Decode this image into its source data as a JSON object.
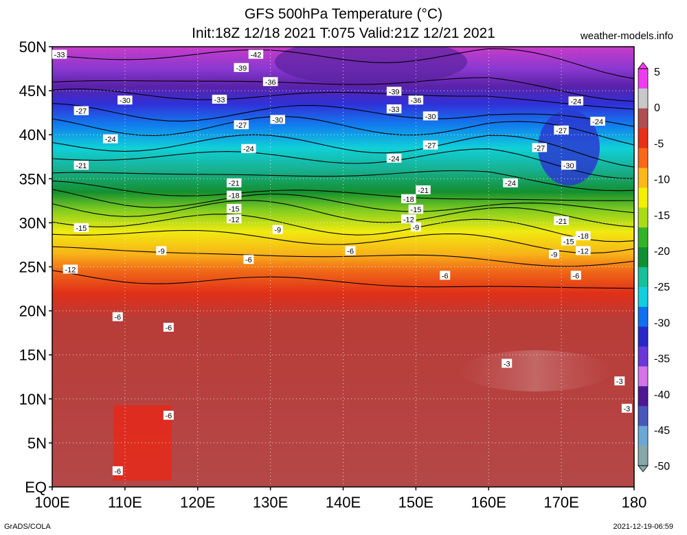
{
  "header": {
    "title": "GFS 500hPa Temperature (°C)",
    "subtitle": "Init:18Z 12/18 2021 T:075 Valid:21Z 12/21 2021",
    "site": "weather-models.info"
  },
  "footer": {
    "left": "GrADS/COLA",
    "right": "2021-12-19-06:59"
  },
  "map": {
    "lat_ticks": [
      "50N",
      "45N",
      "40N",
      "35N",
      "30N",
      "25N",
      "20N",
      "15N",
      "10N",
      "5N",
      "EQ"
    ],
    "lon_ticks": [
      "100E",
      "110E",
      "120E",
      "130E",
      "140E",
      "150E",
      "160E",
      "170E",
      "180"
    ],
    "lon_range": [
      100,
      180
    ],
    "lat_range": [
      0,
      50
    ],
    "contour_labels": [
      {
        "text": "-33",
        "lon": 101.0,
        "lat": 49.1
      },
      {
        "text": "-42",
        "lon": 128.0,
        "lat": 49.1
      },
      {
        "text": "-39",
        "lon": 126.0,
        "lat": 47.6
      },
      {
        "text": "-36",
        "lon": 130.0,
        "lat": 46.0
      },
      {
        "text": "-39",
        "lon": 147.0,
        "lat": 44.9
      },
      {
        "text": "-36",
        "lon": 150.0,
        "lat": 43.9
      },
      {
        "text": "-33",
        "lon": 147.0,
        "lat": 42.9
      },
      {
        "text": "-30",
        "lon": 152.0,
        "lat": 42.1
      },
      {
        "text": "-30",
        "lon": 110.0,
        "lat": 43.9
      },
      {
        "text": "-33",
        "lon": 123.0,
        "lat": 44.0
      },
      {
        "text": "-27",
        "lon": 104.0,
        "lat": 42.7
      },
      {
        "text": "-30",
        "lon": 131.0,
        "lat": 41.7
      },
      {
        "text": "-27",
        "lon": 126.0,
        "lat": 41.1
      },
      {
        "text": "-24",
        "lon": 108.0,
        "lat": 39.5
      },
      {
        "text": "-24",
        "lon": 127.0,
        "lat": 38.4
      },
      {
        "text": "-27",
        "lon": 152.0,
        "lat": 38.8
      },
      {
        "text": "-24",
        "lon": 147.0,
        "lat": 37.3
      },
      {
        "text": "-24",
        "lon": 172.0,
        "lat": 43.8
      },
      {
        "text": "-27",
        "lon": 170.0,
        "lat": 40.5
      },
      {
        "text": "-24",
        "lon": 175.0,
        "lat": 41.5
      },
      {
        "text": "-27",
        "lon": 167.0,
        "lat": 38.5
      },
      {
        "text": "-30",
        "lon": 171.0,
        "lat": 36.5
      },
      {
        "text": "-21",
        "lon": 104.0,
        "lat": 36.5
      },
      {
        "text": "-21",
        "lon": 125.0,
        "lat": 34.5
      },
      {
        "text": "-24",
        "lon": 163.0,
        "lat": 34.5
      },
      {
        "text": "-21",
        "lon": 151.0,
        "lat": 33.7
      },
      {
        "text": "-18",
        "lon": 125.0,
        "lat": 33.1
      },
      {
        "text": "-18",
        "lon": 149.0,
        "lat": 32.7
      },
      {
        "text": "-15",
        "lon": 125.0,
        "lat": 31.6
      },
      {
        "text": "-15",
        "lon": 150.0,
        "lat": 31.5
      },
      {
        "text": "-12",
        "lon": 125.0,
        "lat": 30.4
      },
      {
        "text": "-12",
        "lon": 149.0,
        "lat": 30.4
      },
      {
        "text": "-9",
        "lon": 150.0,
        "lat": 29.5
      },
      {
        "text": "-9",
        "lon": 131.0,
        "lat": 29.2
      },
      {
        "text": "-15",
        "lon": 104.0,
        "lat": 29.4
      },
      {
        "text": "-21",
        "lon": 170.0,
        "lat": 30.2
      },
      {
        "text": "-18",
        "lon": 173.0,
        "lat": 28.5
      },
      {
        "text": "-15",
        "lon": 171.0,
        "lat": 27.9
      },
      {
        "text": "-12",
        "lon": 173.0,
        "lat": 26.8
      },
      {
        "text": "-9",
        "lon": 169.0,
        "lat": 26.4
      },
      {
        "text": "-9",
        "lon": 115.0,
        "lat": 26.8
      },
      {
        "text": "-6",
        "lon": 127.0,
        "lat": 25.8
      },
      {
        "text": "-6",
        "lon": 141.0,
        "lat": 26.8
      },
      {
        "text": "-12",
        "lon": 102.5,
        "lat": 24.7
      },
      {
        "text": "-6",
        "lon": 154.0,
        "lat": 24.0
      },
      {
        "text": "-6",
        "lon": 172.0,
        "lat": 24.0
      },
      {
        "text": "-6",
        "lon": 109.0,
        "lat": 19.3
      },
      {
        "text": "-6",
        "lon": 116.0,
        "lat": 18.1
      },
      {
        "text": "-3",
        "lon": 162.5,
        "lat": 14.0
      },
      {
        "text": "-3",
        "lon": 178.0,
        "lat": 12.0
      },
      {
        "text": "-3",
        "lon": 179.0,
        "lat": 8.9
      },
      {
        "text": "-6",
        "lon": 116.0,
        "lat": 8.1
      },
      {
        "text": "-6",
        "lon": 109.0,
        "lat": 1.8
      }
    ]
  },
  "colorbar": {
    "labels": [
      "5",
      "0",
      "-5",
      "-10",
      "-15",
      "-20",
      "-25",
      "-30",
      "-35",
      "-40",
      "-45",
      "-50"
    ],
    "colors": [
      "#f03cf0",
      "#c8c8c8",
      "#b05050",
      "#e83018",
      "#f86818",
      "#fcb818",
      "#f4f000",
      "#aadc16",
      "#32b428",
      "#109030",
      "#17c098",
      "#10d0e0",
      "#1070f0",
      "#2828c8",
      "#6a38d8",
      "#d474e8",
      "#501890",
      "#4858b8",
      "#6aa8d8",
      "#86a8a8"
    ]
  }
}
